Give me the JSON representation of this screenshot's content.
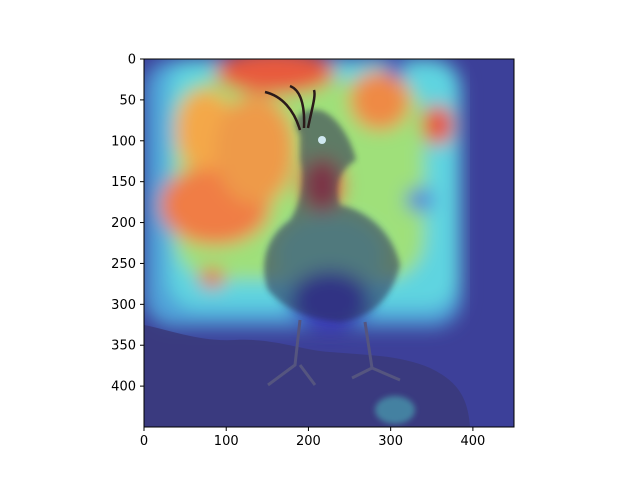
{
  "chart_data": {
    "type": "heatmap",
    "title": "",
    "xlabel": "",
    "ylabel": "",
    "xlim": [
      0,
      450
    ],
    "ylim": [
      450,
      0
    ],
    "xticks": [
      0,
      100,
      200,
      300,
      400
    ],
    "yticks": [
      0,
      50,
      100,
      150,
      200,
      250,
      300,
      350,
      400
    ],
    "colormap": "jet",
    "overlay": "heatmap over photo of a crested seabird perched on a rock",
    "grid": false,
    "legend": "none",
    "colors": {
      "background": "#ffffff",
      "axis": "#000000",
      "low": "#3c3f9a",
      "high": "#e4423b"
    }
  }
}
